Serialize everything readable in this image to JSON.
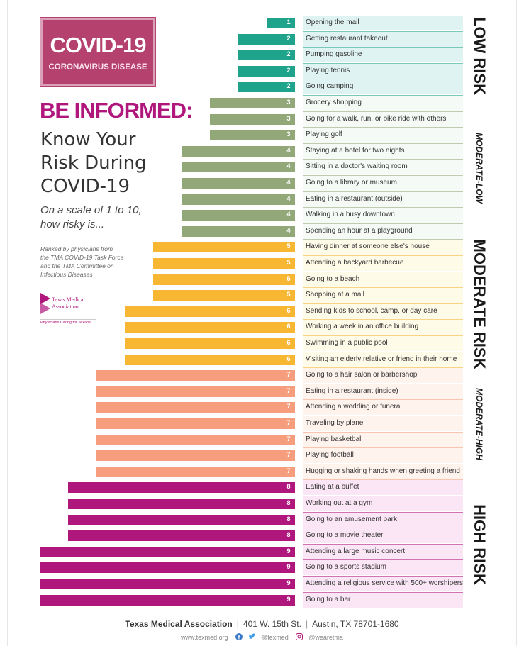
{
  "logo": {
    "title": "COVID-19",
    "subtitle": "CORONAVIRUS DISEASE"
  },
  "headline": "BE INFORMED:",
  "subhead": [
    "Know Your",
    "Risk During",
    "COVID-19"
  ],
  "question": [
    "On a scale of 1 to 10,",
    "how risky is..."
  ],
  "ranked_by": [
    "Ranked by physicians from",
    "the TMA COVID-19 Task Force",
    "and the TMA Committee on",
    "Infectious Diseases"
  ],
  "tma_logo": {
    "name_line1": "Texas Medical",
    "name_line2": "Association",
    "tagline": "Physicians Caring for Texans"
  },
  "colors": {
    "low": "#1fa38b",
    "low_bg": "#dff3f2",
    "moderate_low": "#93a878",
    "moderate_low_bg": "#f6faf6",
    "moderate": "#f7b733",
    "moderate_bg": "#fffbe9",
    "moderate_high": "#f59d7c",
    "moderate_high_bg": "#fff3ee",
    "high": "#b0177d",
    "high_bg": "#fae6f5"
  },
  "chart_data": {
    "type": "bar",
    "orientation": "horizontal",
    "scale": [
      1,
      10
    ],
    "bands": [
      {
        "label": "LOW RISK",
        "style": "big",
        "color_key": "low"
      },
      {
        "label": "MODERATE-LOW",
        "style": "small",
        "color_key": "moderate_low"
      },
      {
        "label": "MODERATE RISK",
        "style": "big",
        "color_key": "moderate"
      },
      {
        "label": "MODERATE-HIGH",
        "style": "small",
        "color_key": "moderate_high"
      },
      {
        "label": "HIGH RISK",
        "style": "big",
        "color_key": "high"
      }
    ],
    "categories": [
      "Opening the mail",
      "Getting restaurant takeout",
      "Pumping gasoline",
      "Playing tennis",
      "Going camping",
      "Grocery shopping",
      "Going for a walk, run, or bike ride with others",
      "Playing golf",
      "Staying at a hotel for two nights",
      "Sitting in a doctor's waiting room",
      "Going to a library or museum",
      "Eating in a restaurant (outside)",
      "Walking in a busy downtown",
      "Spending an hour at a playground",
      "Having dinner at someone else's house",
      "Attending a backyard barbecue",
      "Going to a beach",
      "Shopping at a mall",
      "Sending kids to school, camp, or day care",
      "Working a week in an office building",
      "Swimming in a public pool",
      "Visiting an elderly relative or friend in their home",
      "Going to a hair salon or barbershop",
      "Eating in a restaurant (inside)",
      "Attending a wedding or funeral",
      "Traveling by plane",
      "Playing basketball",
      "Playing football",
      "Hugging or shaking hands when greeting a friend",
      "Eating at a buffet",
      "Working out at a gym",
      "Going to an amusement park",
      "Going to a movie theater",
      "Attending a large music concert",
      "Going to a sports stadium",
      "Attending a religious service with 500+ worshipers",
      "Going to a bar"
    ],
    "values": [
      1,
      2,
      2,
      2,
      2,
      3,
      3,
      3,
      4,
      4,
      4,
      4,
      4,
      4,
      5,
      5,
      5,
      5,
      6,
      6,
      6,
      6,
      7,
      7,
      7,
      7,
      7,
      7,
      7,
      8,
      8,
      8,
      8,
      9,
      9,
      9,
      9
    ]
  },
  "footer": {
    "org": "Texas Medical Association",
    "address": "401 W. 15th St.",
    "city": "Austin, TX 78701-1680",
    "website": "www.texmed.org",
    "social1": "@texmed",
    "social2": "@wearetma"
  }
}
